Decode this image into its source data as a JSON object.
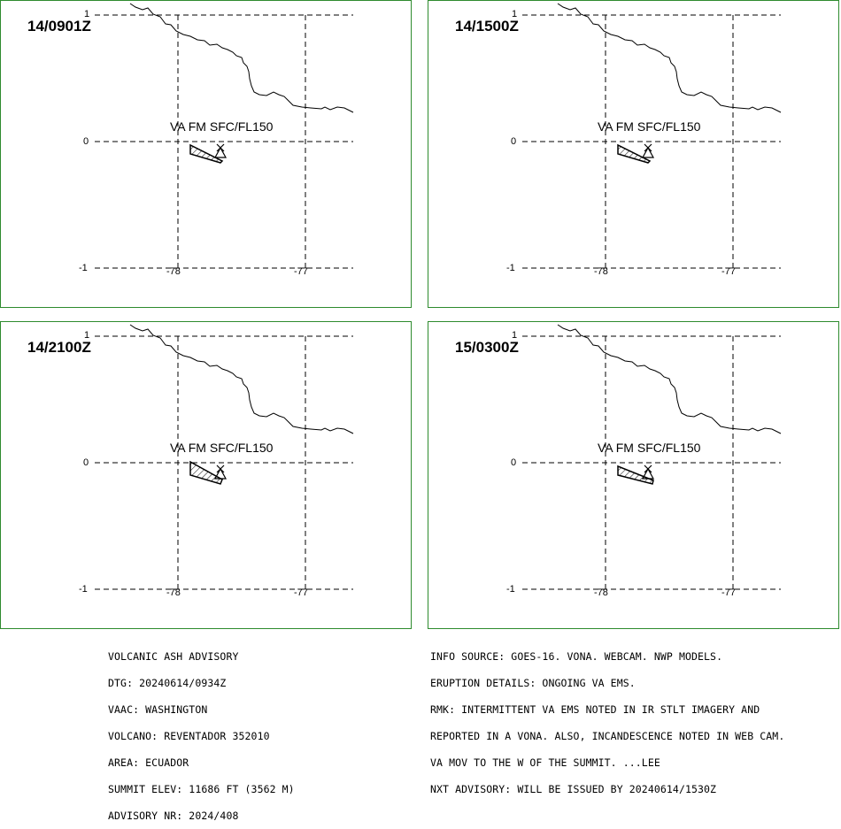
{
  "panels": [
    {
      "time": "14/0901Z",
      "label": "VA FM SFC/FL150",
      "ash": [
        [
          0,
          0
        ],
        [
          0,
          -10
        ],
        [
          36,
          8
        ],
        [
          34,
          10
        ]
      ]
    },
    {
      "time": "14/1500Z",
      "label": "VA FM SFC/FL150",
      "ash": [
        [
          0,
          0
        ],
        [
          0,
          -10
        ],
        [
          36,
          8
        ],
        [
          34,
          10
        ]
      ]
    },
    {
      "time": "14/2100Z",
      "label": "VA FM SFC/FL150",
      "ash": [
        [
          0,
          0
        ],
        [
          0,
          -15
        ],
        [
          36,
          5
        ],
        [
          34,
          10
        ]
      ]
    },
    {
      "time": "15/0300Z",
      "label": "VA FM SFC/FL150",
      "ash": [
        [
          0,
          0
        ],
        [
          0,
          -10
        ],
        [
          40,
          6
        ],
        [
          39,
          10
        ]
      ]
    }
  ],
  "axes": {
    "lat_labels": [
      "1",
      "0",
      "-1"
    ],
    "lon_labels": [
      "-78",
      "-77"
    ]
  },
  "advisory_left": [
    "VOLCANIC ASH ADVISORY",
    "DTG: 20240614/0934Z",
    "VAAC: WASHINGTON",
    "VOLCANO: REVENTADOR 352010",
    "AREA: ECUADOR",
    "SUMMIT ELEV: 11686 FT (3562 M)",
    "ADVISORY NR: 2024/408"
  ],
  "advisory_right": [
    "INFO SOURCE: GOES-16. VONA. WEBCAM. NWP MODELS.",
    "ERUPTION DETAILS: ONGOING VA EMS.",
    "RMK: INTERMITTENT VA EMS NOTED IN IR STLT IMAGERY AND",
    "REPORTED IN A VONA. ALSO, INCANDESCENCE NOTED IN WEB CAM.",
    "VA MOV TO THE W OF THE SUMMIT. ...LEE",
    "NXT ADVISORY: WILL BE ISSUED BY 20240614/1530Z"
  ],
  "colors": {
    "frame": "#2e8b2e",
    "ink": "#000000"
  }
}
